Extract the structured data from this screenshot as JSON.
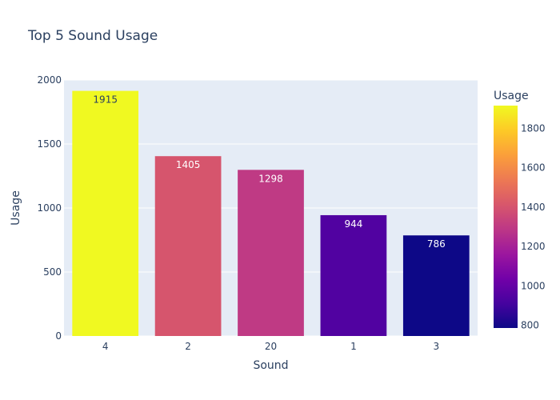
{
  "chart_data": {
    "type": "bar",
    "title": "Top 5 Sound Usage",
    "xlabel": "Sound",
    "ylabel": "Usage",
    "categories": [
      "4",
      "2",
      "20",
      "1",
      "3"
    ],
    "values": [
      1915,
      1405,
      1298,
      944,
      786
    ],
    "data_labels": [
      "1915",
      "1405",
      "1298",
      "944",
      "786"
    ],
    "ylim": [
      0,
      2000
    ],
    "yticks": [
      0,
      500,
      1000,
      1500,
      2000
    ],
    "grid": true,
    "colorscale": {
      "name": "Plasma",
      "title": "Usage",
      "range": [
        786,
        1915
      ],
      "ticks": [
        800,
        1000,
        1200,
        1400,
        1600,
        1800
      ],
      "colors": [
        "#0d0887",
        "#46039f",
        "#7201a8",
        "#9c179e",
        "#bd3786",
        "#d8576b",
        "#ed7953",
        "#fb9f3a",
        "#fdca26",
        "#f0f921"
      ]
    },
    "colors": {
      "plot_bg": "#e5ecf6",
      "grid": "#ffffff",
      "text": "#2a3f5f"
    }
  }
}
